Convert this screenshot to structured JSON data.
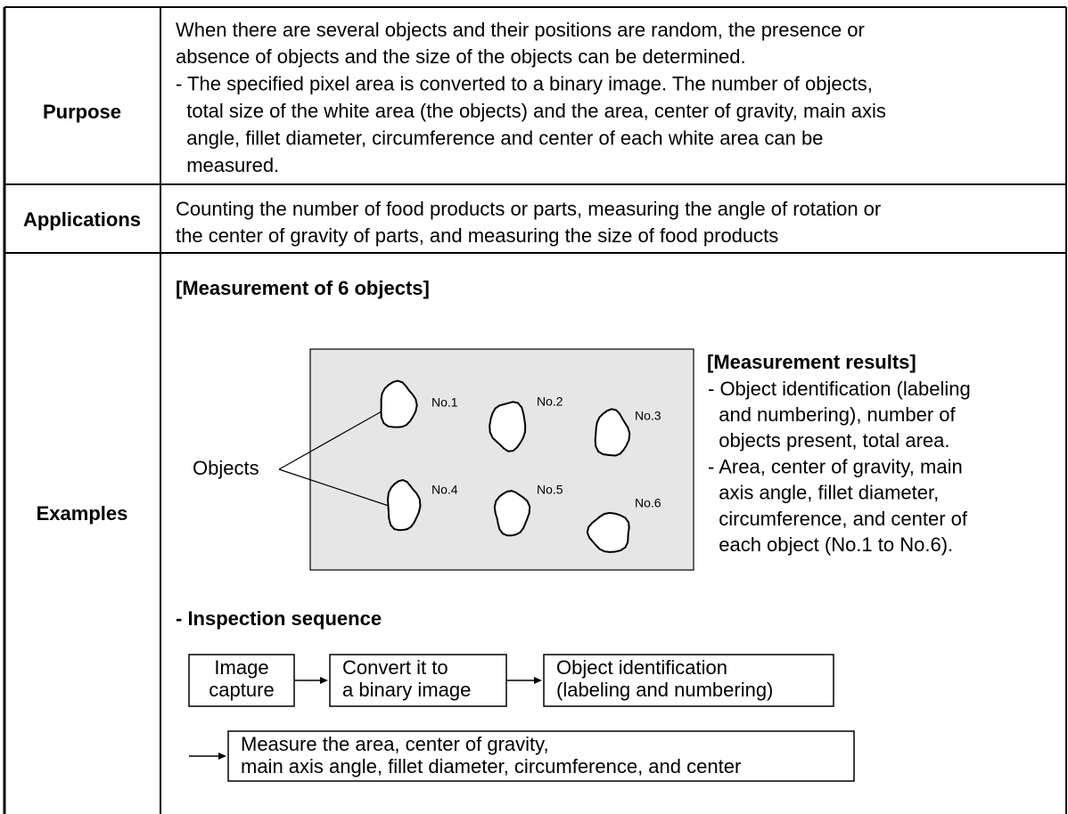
{
  "table": {
    "rows": [
      {
        "label": "Purpose",
        "lines": [
          "When there are several objects and their positions are random, the presence or",
          "absence of objects and the size of the objects can be determined.",
          "- The specified pixel area is converted to a binary image. The number of objects,",
          "  total size of the white area (the objects) and the area, center of gravity, main axis",
          "  angle, fillet diameter, circumference and center of each white area can be",
          "  measured."
        ]
      },
      {
        "label": "Applications",
        "lines": [
          "Counting the number of food products or parts, measuring the angle of rotation or",
          "the center of gravity of parts, and measuring the size of food products"
        ]
      },
      {
        "label": "Examples"
      }
    ]
  },
  "examples": {
    "heading": "[Measurement of 6 objects]",
    "objects_label": "Objects",
    "object_labels": [
      "No.1",
      "No.2",
      "No.3",
      "No.4",
      "No.5",
      "No.6"
    ],
    "results_heading": "[Measurement results]",
    "results_lines": [
      "- Object identification (labeling",
      "  and numbering), number of",
      "  objects present, total area.",
      "- Area, center of gravity, main",
      "  axis angle, fillet diameter,",
      "  circumference, and center of",
      "  each object (No.1 to No.6)."
    ],
    "sequence_heading": "- Inspection sequence",
    "steps": [
      [
        "Image",
        "capture"
      ],
      [
        "Convert it to",
        "a binary image"
      ],
      [
        "Object identification",
        "(labeling and numbering)"
      ],
      [
        "Measure the area, center of gravity,",
        "main axis angle, fillet diameter, circumference, and center"
      ]
    ]
  }
}
